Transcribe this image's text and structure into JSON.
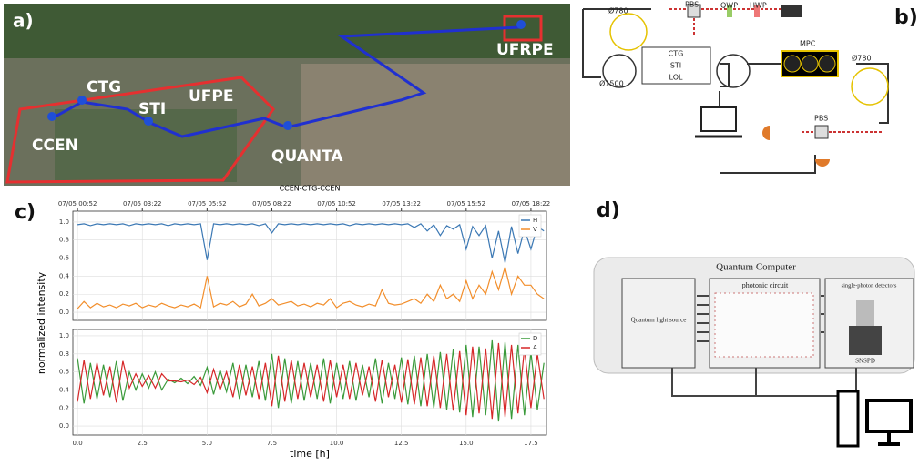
{
  "panel_labels": [
    "a)",
    "b)",
    "c)",
    "d)"
  ],
  "map": {
    "labels": [
      "CTG",
      "STI",
      "UFPE",
      "CCEN",
      "QUANTA",
      "UFRPE"
    ]
  },
  "setup": {
    "labels": [
      "Ø780",
      "PBS",
      "QWP",
      "HWP",
      "CTG",
      "STI",
      "LOL",
      "Ø1500",
      "MPC",
      "Ø780",
      "PBS"
    ]
  },
  "chart_data": [
    {
      "type": "line",
      "title": "CCEN-CTG-CCEN",
      "ylabel": "normalized intensity",
      "x": [
        0,
        0.25,
        0.5,
        0.75,
        1,
        1.25,
        1.5,
        1.75,
        2,
        2.25,
        2.5,
        2.75,
        3,
        3.25,
        3.5,
        3.75,
        4,
        4.25,
        4.5,
        4.75,
        5,
        5.25,
        5.5,
        5.75,
        6,
        6.25,
        6.5,
        6.75,
        7,
        7.25,
        7.5,
        7.75,
        8,
        8.25,
        8.5,
        8.75,
        9,
        9.25,
        9.5,
        9.75,
        10,
        10.25,
        10.5,
        10.75,
        11,
        11.25,
        11.5,
        11.75,
        12,
        12.25,
        12.5,
        12.75,
        13,
        13.25,
        13.5,
        13.75,
        14,
        14.25,
        14.5,
        14.75,
        15,
        15.25,
        15.5,
        15.75,
        16,
        16.25,
        16.5,
        16.75,
        17,
        17.25,
        17.5,
        17.75,
        18
      ],
      "series": [
        {
          "name": "H",
          "color": "#3b78b4",
          "values": [
            0.97,
            0.98,
            0.96,
            0.98,
            0.97,
            0.98,
            0.97,
            0.98,
            0.96,
            0.98,
            0.97,
            0.98,
            0.97,
            0.98,
            0.96,
            0.98,
            0.97,
            0.98,
            0.97,
            0.98,
            0.58,
            0.98,
            0.97,
            0.98,
            0.97,
            0.98,
            0.97,
            0.98,
            0.96,
            0.98,
            0.88,
            0.98,
            0.97,
            0.98,
            0.97,
            0.98,
            0.97,
            0.98,
            0.97,
            0.98,
            0.97,
            0.98,
            0.96,
            0.98,
            0.97,
            0.98,
            0.97,
            0.98,
            0.97,
            0.98,
            0.97,
            0.98,
            0.94,
            0.98,
            0.9,
            0.97,
            0.85,
            0.96,
            0.92,
            0.97,
            0.7,
            0.95,
            0.85,
            0.96,
            0.6,
            0.9,
            0.55,
            0.95,
            0.65,
            0.92,
            0.7,
            0.95,
            0.9
          ]
        },
        {
          "name": "V",
          "color": "#f28e2b",
          "values": [
            0.04,
            0.12,
            0.05,
            0.1,
            0.06,
            0.08,
            0.05,
            0.09,
            0.07,
            0.1,
            0.05,
            0.08,
            0.06,
            0.1,
            0.07,
            0.05,
            0.08,
            0.06,
            0.09,
            0.05,
            0.4,
            0.06,
            0.1,
            0.08,
            0.12,
            0.06,
            0.09,
            0.2,
            0.07,
            0.1,
            0.15,
            0.08,
            0.1,
            0.12,
            0.07,
            0.09,
            0.06,
            0.1,
            0.08,
            0.15,
            0.05,
            0.1,
            0.12,
            0.08,
            0.06,
            0.09,
            0.07,
            0.25,
            0.1,
            0.08,
            0.09,
            0.12,
            0.15,
            0.1,
            0.2,
            0.12,
            0.3,
            0.15,
            0.2,
            0.12,
            0.35,
            0.15,
            0.3,
            0.2,
            0.45,
            0.25,
            0.5,
            0.2,
            0.4,
            0.3,
            0.3,
            0.2,
            0.15
          ]
        }
      ],
      "xlim": [
        -0.18,
        18.1
      ],
      "ylim": [
        -0.09,
        1.12
      ],
      "xticks": [
        0,
        2.5,
        5,
        7.5,
        10,
        12.5,
        15,
        17.5
      ],
      "x2ticks": [
        {
          "value": 0,
          "label": "07/05 00:52"
        },
        {
          "value": 2.5,
          "label": "07/05 03:22"
        },
        {
          "value": 5,
          "label": "07/05 05:52"
        },
        {
          "value": 7.5,
          "label": "07/05 08:22"
        },
        {
          "value": 10,
          "label": "07/05 10:52"
        },
        {
          "value": 12.5,
          "label": "07/05 13:22"
        },
        {
          "value": 15,
          "label": "07/05 15:52"
        },
        {
          "value": 17.5,
          "label": "07/05 18:22"
        }
      ],
      "yticks": [
        {
          "value": 0,
          "label": "0.0"
        },
        {
          "value": 0.2,
          "label": "0.2"
        },
        {
          "value": 0.4,
          "label": "0.4"
        },
        {
          "value": 0.6,
          "label": "0.6"
        },
        {
          "value": 0.8,
          "label": "0.8"
        },
        {
          "value": 1,
          "label": "1.0"
        }
      ],
      "grid": true,
      "legend": "upper right"
    },
    {
      "type": "line",
      "xlabel": "time [h]",
      "x": [
        0,
        0.25,
        0.5,
        0.75,
        1,
        1.25,
        1.5,
        1.75,
        2,
        2.25,
        2.5,
        2.75,
        3,
        3.25,
        3.5,
        3.75,
        4,
        4.25,
        4.5,
        4.75,
        5,
        5.25,
        5.5,
        5.75,
        6,
        6.25,
        6.5,
        6.75,
        7,
        7.25,
        7.5,
        7.75,
        8,
        8.25,
        8.5,
        8.75,
        9,
        9.25,
        9.5,
        9.75,
        10,
        10.25,
        10.5,
        10.75,
        11,
        11.25,
        11.5,
        11.75,
        12,
        12.25,
        12.5,
        12.75,
        13,
        13.25,
        13.5,
        13.75,
        14,
        14.25,
        14.5,
        14.75,
        15,
        15.25,
        15.5,
        15.75,
        16,
        16.25,
        16.5,
        16.75,
        17,
        17.25,
        17.5,
        17.75,
        18
      ],
      "series": [
        {
          "name": "D",
          "color": "#3a9a3a",
          "values": [
            0.75,
            0.25,
            0.7,
            0.3,
            0.68,
            0.32,
            0.72,
            0.28,
            0.6,
            0.4,
            0.58,
            0.42,
            0.6,
            0.4,
            0.52,
            0.48,
            0.53,
            0.47,
            0.55,
            0.45,
            0.65,
            0.35,
            0.62,
            0.38,
            0.7,
            0.3,
            0.68,
            0.32,
            0.72,
            0.28,
            0.8,
            0.2,
            0.75,
            0.25,
            0.72,
            0.28,
            0.7,
            0.3,
            0.75,
            0.25,
            0.7,
            0.3,
            0.72,
            0.28,
            0.68,
            0.32,
            0.75,
            0.25,
            0.7,
            0.3,
            0.76,
            0.24,
            0.78,
            0.22,
            0.8,
            0.2,
            0.82,
            0.18,
            0.85,
            0.15,
            0.9,
            0.1,
            0.88,
            0.12,
            0.95,
            0.05,
            0.93,
            0.08,
            0.9,
            0.12,
            0.82,
            0.18,
            0.7
          ]
        },
        {
          "name": "A",
          "color": "#d62728",
          "values": [
            0.27,
            0.73,
            0.3,
            0.7,
            0.34,
            0.66,
            0.26,
            0.72,
            0.42,
            0.58,
            0.44,
            0.56,
            0.42,
            0.58,
            0.5,
            0.5,
            0.49,
            0.51,
            0.46,
            0.54,
            0.37,
            0.63,
            0.4,
            0.6,
            0.32,
            0.68,
            0.34,
            0.66,
            0.3,
            0.7,
            0.22,
            0.78,
            0.27,
            0.73,
            0.3,
            0.7,
            0.32,
            0.68,
            0.27,
            0.73,
            0.32,
            0.68,
            0.3,
            0.7,
            0.34,
            0.66,
            0.27,
            0.73,
            0.32,
            0.68,
            0.26,
            0.74,
            0.24,
            0.76,
            0.22,
            0.78,
            0.2,
            0.8,
            0.17,
            0.83,
            0.12,
            0.88,
            0.14,
            0.86,
            0.08,
            0.92,
            0.1,
            0.9,
            0.14,
            0.86,
            0.2,
            0.8,
            0.3
          ]
        }
      ],
      "xlim": [
        -0.18,
        18.1
      ],
      "ylim": [
        -0.1,
        1.07
      ],
      "xticks": [
        {
          "value": 0,
          "label": "0.0"
        },
        {
          "value": 2.5,
          "label": "2.5"
        },
        {
          "value": 5,
          "label": "5.0"
        },
        {
          "value": 7.5,
          "label": "7.5"
        },
        {
          "value": 10,
          "label": "10.0"
        },
        {
          "value": 12.5,
          "label": "12.5"
        },
        {
          "value": 15,
          "label": "15.0"
        },
        {
          "value": 17.5,
          "label": "17.5"
        }
      ],
      "yticks": [
        {
          "value": 0,
          "label": "0.0"
        },
        {
          "value": 0.2,
          "label": "0.2"
        },
        {
          "value": 0.4,
          "label": "0.4"
        },
        {
          "value": 0.6,
          "label": "0.6"
        },
        {
          "value": 0.8,
          "label": "0.8"
        },
        {
          "value": 1,
          "label": "1.0"
        }
      ],
      "grid": true,
      "legend": "upper right"
    }
  ],
  "quantum_computer": {
    "title": "Quantum Computer",
    "source": "Quantum light source",
    "circuit": "photonic circuit",
    "detectors": "single-photon detectors",
    "snspd": "SNSPD"
  }
}
